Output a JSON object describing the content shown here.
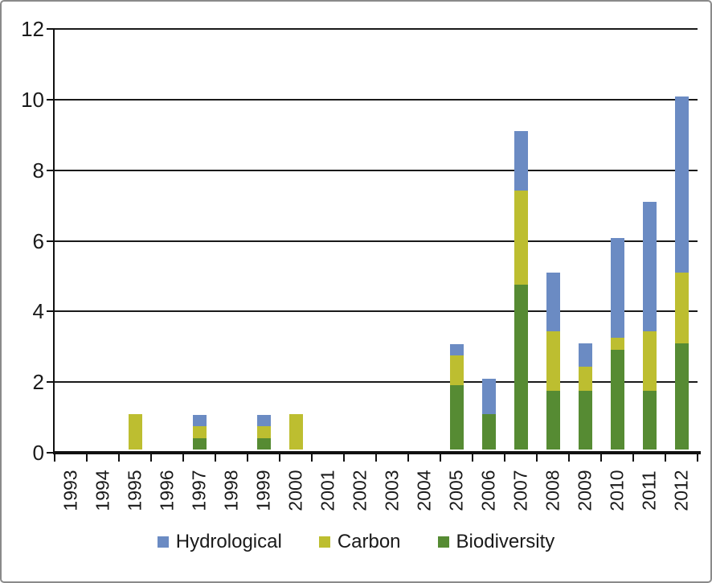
{
  "figure": {
    "background": "#ffffff",
    "border_color": "#8a8a8a",
    "axis_color": "#1a1a1a"
  },
  "chart_data": {
    "type": "bar",
    "stacked": true,
    "title": "",
    "xlabel": "",
    "ylabel": "",
    "categories": [
      "1993",
      "1994",
      "1995",
      "1996",
      "1997",
      "1998",
      "1999",
      "2000",
      "2001",
      "2002",
      "2003",
      "2004",
      "2005",
      "2006",
      "2007",
      "2008",
      "2009",
      "2010",
      "2011",
      "2012"
    ],
    "series": [
      {
        "name": "Hydrological",
        "color": "#6B8BC3",
        "values": [
          0,
          0,
          0,
          0,
          0.33,
          0,
          0.33,
          0,
          0,
          0,
          0,
          0,
          0.33,
          1,
          1.67,
          1.67,
          0.67,
          2.83,
          3.67,
          5
        ]
      },
      {
        "name": "Carbon",
        "color": "#BDBE30",
        "values": [
          0,
          0,
          1,
          0,
          0.33,
          0,
          0.33,
          1,
          0,
          0,
          0,
          0,
          0.83,
          0,
          2.67,
          1.67,
          0.67,
          0.33,
          1.67,
          2
        ]
      },
      {
        "name": "Biodiversity",
        "color": "#568B33",
        "values": [
          0,
          0,
          0,
          0,
          0.33,
          0,
          0.33,
          0,
          0,
          0,
          0,
          0,
          1.83,
          1,
          4.67,
          1.67,
          1.67,
          2.83,
          1.67,
          3
        ]
      }
    ],
    "stack_order_bottom_to_top": [
      "Biodiversity",
      "Carbon",
      "Hydrological"
    ],
    "ylim": [
      0,
      12
    ],
    "yticks": [
      0,
      2,
      4,
      6,
      8,
      10,
      12
    ],
    "grid": true,
    "legend": {
      "position": "bottom",
      "items": [
        "Hydrological",
        "Carbon",
        "Biodiversity"
      ]
    }
  }
}
